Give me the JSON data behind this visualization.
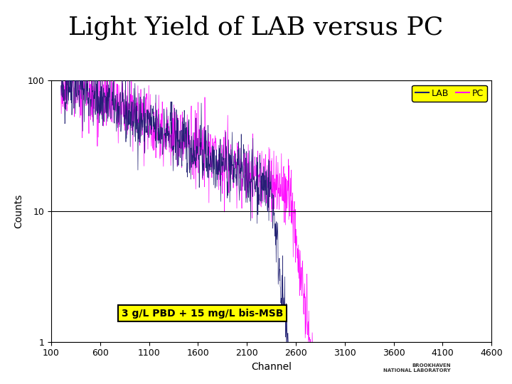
{
  "title": "Light Yield of LAB versus PC",
  "xlabel": "Channel",
  "ylabel": "Counts",
  "title_fontsize": 26,
  "axis_label_fontsize": 10,
  "tick_fontsize": 9,
  "background_color": "#ffffff",
  "plot_bg_color": "#ffffff",
  "lab_color": "#1a1a6e",
  "pc_color": "#ff00ff",
  "xmin": 100,
  "xmax": 4600,
  "ymin": 1,
  "ymax": 100,
  "xticks": [
    100,
    600,
    1100,
    1600,
    2100,
    2600,
    3100,
    3600,
    4100,
    4600
  ],
  "annotation_text": "3 g/L PBD + 15 mg/L bis-MSB",
  "legend_bg": "#ffff00",
  "legend_labels": [
    "LAB",
    "PC"
  ],
  "seed": 42
}
